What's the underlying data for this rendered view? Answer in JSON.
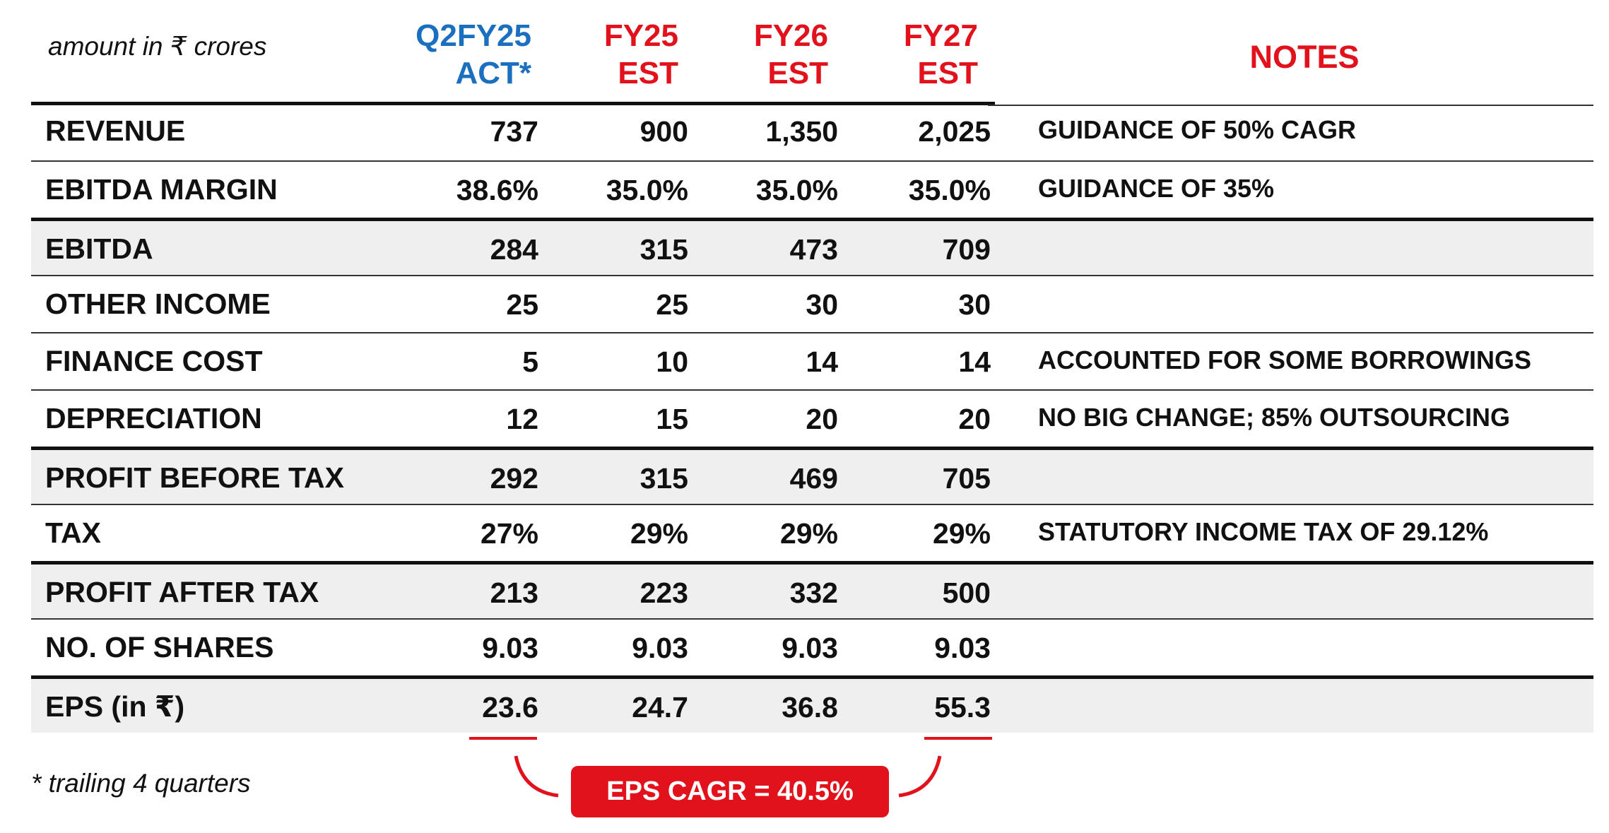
{
  "header": {
    "caption": "amount in ₹ crores",
    "columns": [
      {
        "line1": "Q2FY25",
        "line2": "ACT*",
        "color": "#1a6fbf"
      },
      {
        "line1": "FY25",
        "line2": "EST",
        "color": "#e2121c"
      },
      {
        "line1": "FY26",
        "line2": "EST",
        "color": "#e2121c"
      },
      {
        "line1": "FY27",
        "line2": "EST",
        "color": "#e2121c"
      }
    ],
    "notes_title": "NOTES"
  },
  "rows": [
    {
      "label": "REVENUE",
      "values": [
        "737",
        "900",
        "1,350",
        "2,025"
      ],
      "note": "GUIDANCE OF 50% CAGR"
    },
    {
      "label": "EBITDA MARGIN",
      "values": [
        "38.6%",
        "35.0%",
        "35.0%",
        "35.0%"
      ],
      "note": "GUIDANCE OF 35%"
    },
    {
      "label": "EBITDA",
      "values": [
        "284",
        "315",
        "473",
        "709"
      ],
      "note": ""
    },
    {
      "label": "OTHER INCOME",
      "values": [
        "25",
        "25",
        "30",
        "30"
      ],
      "note": ""
    },
    {
      "label": "FINANCE COST",
      "values": [
        "5",
        "10",
        "14",
        "14"
      ],
      "note": "ACCOUNTED FOR SOME BORROWINGS"
    },
    {
      "label": "DEPRECIATION",
      "values": [
        "12",
        "15",
        "20",
        "20"
      ],
      "note": "NO BIG CHANGE; 85% OUTSOURCING"
    },
    {
      "label": "PROFIT BEFORE TAX",
      "values": [
        "292",
        "315",
        "469",
        "705"
      ],
      "note": ""
    },
    {
      "label": "TAX",
      "values": [
        "27%",
        "29%",
        "29%",
        "29%"
      ],
      "note": "STATUTORY INCOME TAX OF 29.12%"
    },
    {
      "label": "PROFIT AFTER TAX",
      "values": [
        "213",
        "223",
        "332",
        "500"
      ],
      "note": ""
    },
    {
      "label": "NO. OF SHARES",
      "values": [
        "9.03",
        "9.03",
        "9.03",
        "9.03"
      ],
      "note": ""
    },
    {
      "label": "EPS (in ₹)",
      "values": [
        "23.6",
        "24.7",
        "36.8",
        "55.3"
      ],
      "note": ""
    }
  ],
  "footnote": "* trailing 4 quarters",
  "cagr_label": "EPS CAGR = 40.5%",
  "colors": {
    "accent": "#e2121c",
    "actual": "#1a6fbf",
    "shade": "#efefef"
  }
}
